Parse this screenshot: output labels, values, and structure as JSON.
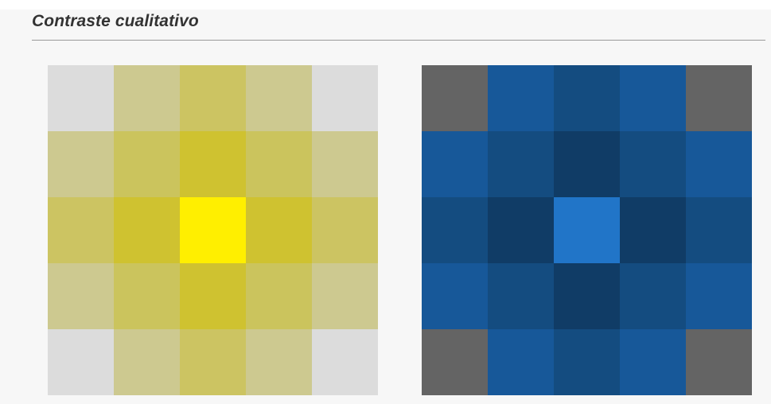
{
  "title": "Contraste cualitativo",
  "left_grid": {
    "colors": [
      [
        "#dcdcdc",
        "#cdc990",
        "#ccc462",
        "#cdc990",
        "#dcdcdc"
      ],
      [
        "#cdc990",
        "#cbc45d",
        "#cfc230",
        "#cbc45d",
        "#cdc990"
      ],
      [
        "#ccc462",
        "#cfc230",
        "#ffef00",
        "#cfc230",
        "#ccc462"
      ],
      [
        "#cdc990",
        "#cbc45d",
        "#cfc230",
        "#cbc45d",
        "#cdc990"
      ],
      [
        "#dcdcdc",
        "#cdc990",
        "#ccc462",
        "#cdc990",
        "#dcdcdc"
      ]
    ]
  },
  "right_grid": {
    "colors": [
      [
        "#646464",
        "#175899",
        "#144c80",
        "#175899",
        "#646464"
      ],
      [
        "#175899",
        "#144c80",
        "#103c66",
        "#144c80",
        "#175899"
      ],
      [
        "#144c80",
        "#103c66",
        "#2175c8",
        "#103c66",
        "#144c80"
      ],
      [
        "#175899",
        "#144c80",
        "#103c66",
        "#144c80",
        "#175899"
      ],
      [
        "#646464",
        "#175899",
        "#144c80",
        "#175899",
        "#646464"
      ]
    ]
  }
}
